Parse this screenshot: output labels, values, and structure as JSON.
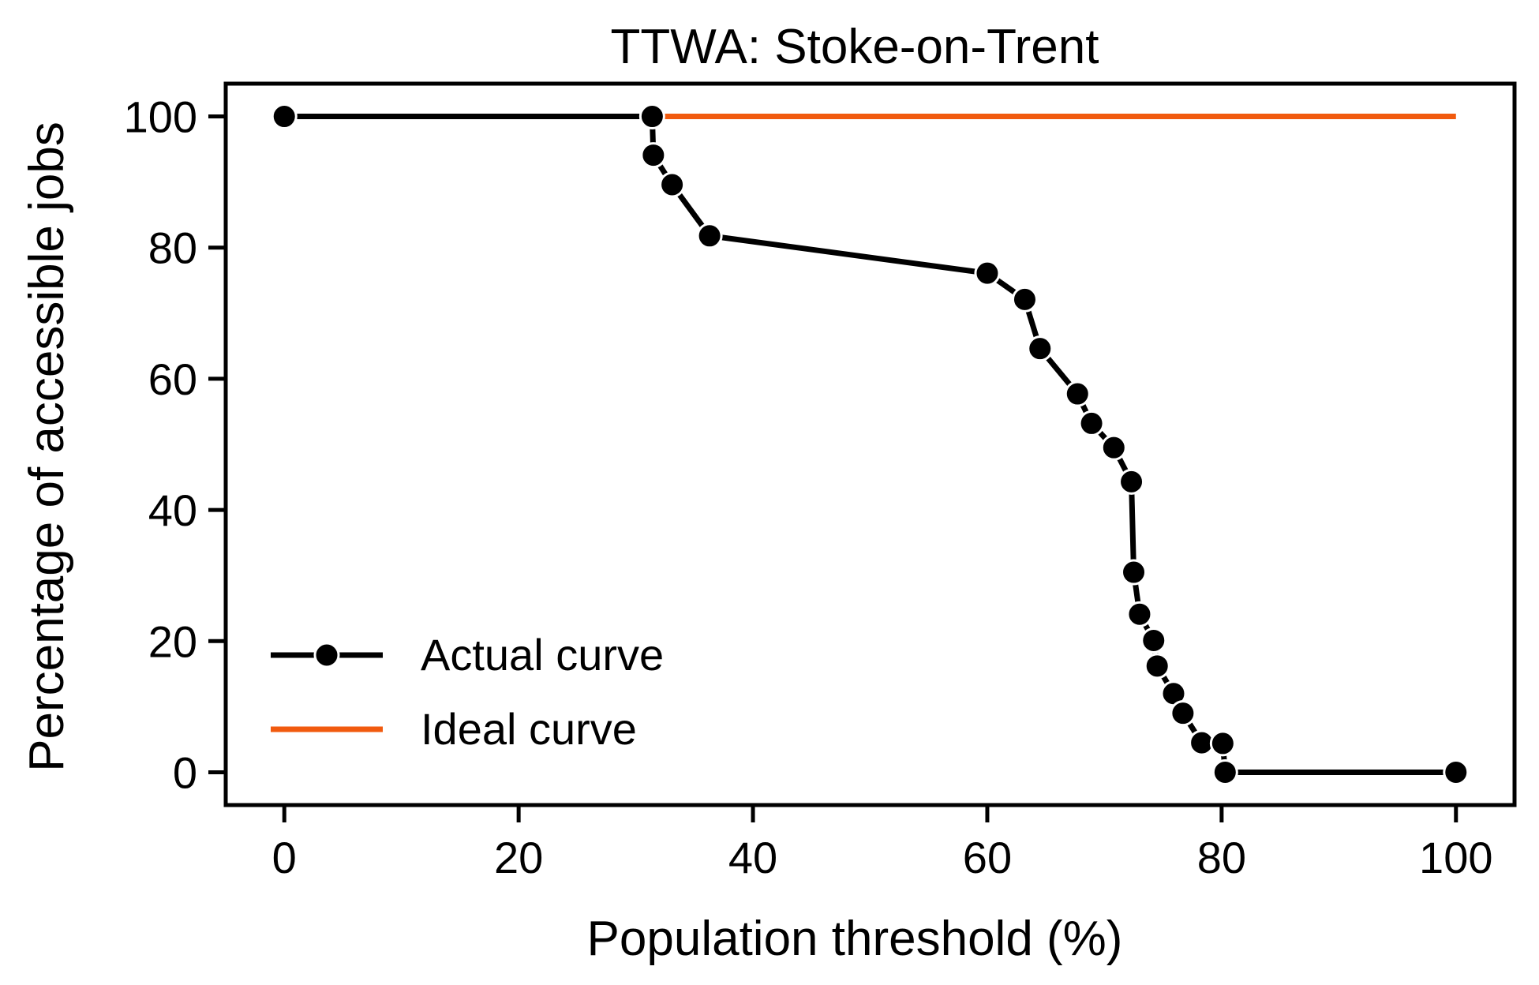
{
  "chart_data": {
    "type": "line",
    "title": "TTWA: Stoke-on-Trent",
    "xlabel": "Population threshold (%)",
    "ylabel": "Percentage of accessible jobs",
    "xlim": [
      -5,
      105
    ],
    "ylim": [
      -5,
      105
    ],
    "xticks": [
      0,
      20,
      40,
      60,
      80,
      100
    ],
    "yticks": [
      0,
      20,
      40,
      60,
      80,
      100
    ],
    "grid": false,
    "legend_position": "lower-left",
    "series": [
      {
        "name": "Actual curve",
        "color": "#000000",
        "marker": "circle",
        "x": [
          0,
          31.4,
          31.5,
          33.1,
          36.3,
          60.0,
          63.2,
          64.5,
          67.7,
          68.9,
          70.8,
          72.3,
          72.5,
          73.0,
          74.2,
          74.5,
          75.9,
          76.7,
          78.3,
          80.1,
          80.3,
          100
        ],
        "y": [
          100,
          100,
          94.1,
          89.6,
          81.8,
          76.1,
          72.1,
          64.6,
          57.7,
          53.2,
          49.5,
          44.3,
          30.5,
          24.1,
          20.1,
          16.2,
          12.0,
          9.0,
          4.5,
          4.4,
          0,
          0
        ]
      },
      {
        "name": "Ideal curve",
        "color": "#F15A0E",
        "marker": "none",
        "x": [
          0,
          100
        ],
        "y": [
          100,
          100
        ]
      }
    ]
  }
}
